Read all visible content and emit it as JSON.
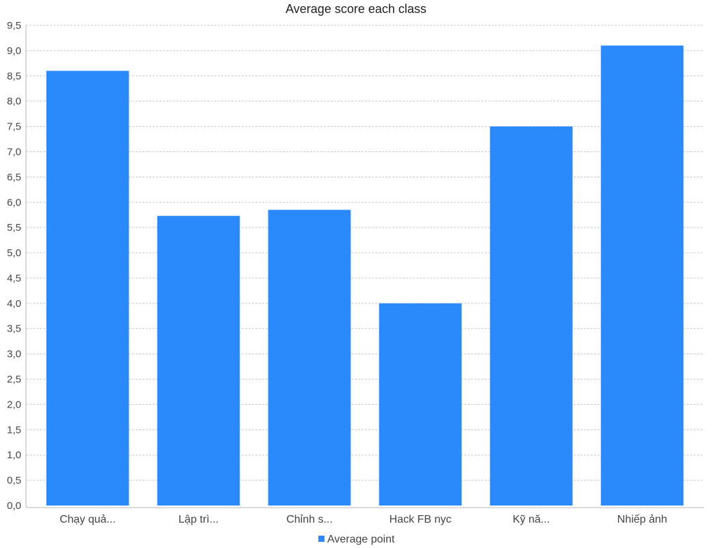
{
  "chart_data": {
    "type": "bar",
    "title": "Average score each class",
    "xlabel": "",
    "ylabel": "",
    "categories": [
      "Chạy quả...",
      "Lập trì...",
      "Chỉnh s...",
      "Hack FB nyc",
      "Kỹ nă...",
      "Nhiếp ảnh"
    ],
    "series": [
      {
        "name": "Average point",
        "values": [
          8.6,
          5.73,
          5.85,
          4.0,
          7.5,
          9.1
        ],
        "color": "#2a8afc"
      }
    ],
    "ylim": [
      0,
      9.5
    ],
    "y_tick_step": 0.5,
    "y_tick_labels": [
      "0,0",
      "0,5",
      "1,0",
      "1,5",
      "2,0",
      "2,5",
      "3,0",
      "3,5",
      "4,0",
      "4,5",
      "5,0",
      "5,5",
      "6,0",
      "6,5",
      "7,0",
      "7,5",
      "8,0",
      "8,5",
      "9,0",
      "9,5"
    ],
    "grid": true,
    "legend_position": "bottom-center"
  }
}
